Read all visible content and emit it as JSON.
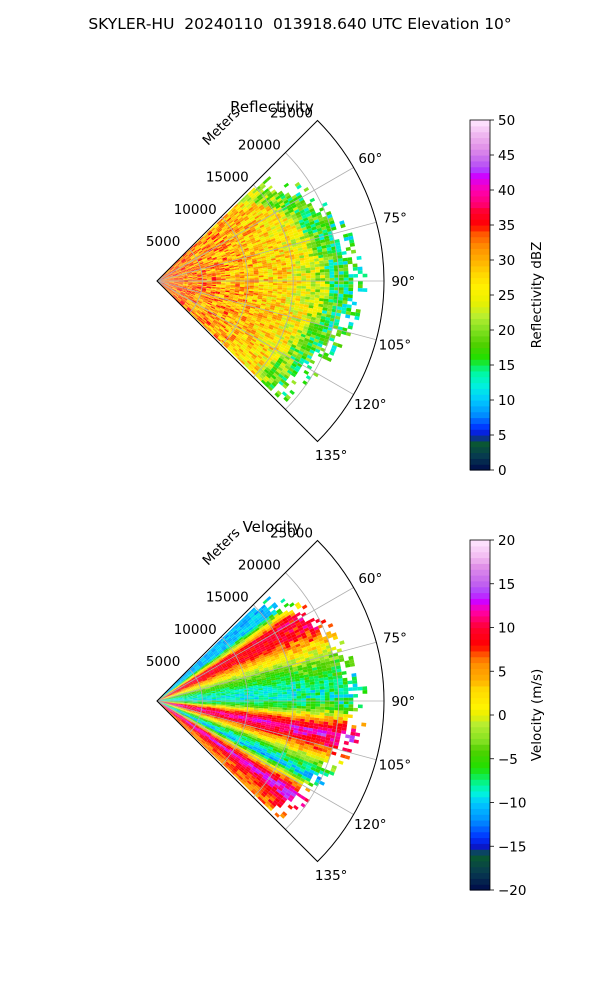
{
  "figure": {
    "title": "SKYLER-HU  20240110  013918.640 UTC Elevation 10°"
  },
  "chart_data": [
    {
      "type": "heatmap",
      "projection": "polar-sector",
      "title": "Reflectivity",
      "field": "reflectivity",
      "range_label": "Meters",
      "range_ticks": [
        "5000",
        "10000",
        "15000",
        "20000",
        "25000"
      ],
      "range_tick_values": [
        5000,
        10000,
        15000,
        20000,
        25000
      ],
      "rlim": [
        0,
        25000
      ],
      "azimuth_ticks": [
        "60°",
        "75°",
        "90°",
        "105°",
        "120°",
        "135°"
      ],
      "azimuth_tick_values": [
        60,
        75,
        90,
        105,
        120,
        135
      ],
      "azimuth_range": [
        45,
        135
      ],
      "data_azimuth_range": [
        46,
        134
      ],
      "grid": true,
      "colorbar": {
        "label": "Reflectivity dBZ",
        "min": 0,
        "max": 50,
        "ticks": [
          "0",
          "5",
          "10",
          "15",
          "20",
          "25",
          "30",
          "35",
          "40",
          "45",
          "50"
        ],
        "stops": [
          [
            0,
            "#000a4a"
          ],
          [
            2,
            "#073a50"
          ],
          [
            4,
            "#0a5a30"
          ],
          [
            5,
            "#0a18c8"
          ],
          [
            6,
            "#0030ff"
          ],
          [
            8,
            "#0090ff"
          ],
          [
            10,
            "#00c8ff"
          ],
          [
            12,
            "#00f0e0"
          ],
          [
            14,
            "#00f8a0"
          ],
          [
            16,
            "#20e000"
          ],
          [
            18,
            "#50d000"
          ],
          [
            20,
            "#80e020"
          ],
          [
            22,
            "#b8ee30"
          ],
          [
            24,
            "#e8f000"
          ],
          [
            26,
            "#fff200"
          ],
          [
            28,
            "#ffd800"
          ],
          [
            30,
            "#ffb000"
          ],
          [
            32,
            "#ff8c00"
          ],
          [
            34,
            "#ff5000"
          ],
          [
            35,
            "#ff0000"
          ],
          [
            37,
            "#ff0030"
          ],
          [
            38,
            "#ff0070"
          ],
          [
            40,
            "#ff00b0"
          ],
          [
            42,
            "#d000ff"
          ],
          [
            43,
            "#b040ff"
          ],
          [
            44,
            "#c060f0"
          ],
          [
            46,
            "#e090e8"
          ],
          [
            48,
            "#f0b8f0"
          ],
          [
            50,
            "#ffe8ff"
          ]
        ]
      },
      "echo": {
        "max_range_profile": [
          14600,
          16800,
          18500,
          19600,
          20500,
          21300,
          20700,
          19700,
          18700,
          17800,
          17100
        ],
        "typical_value_profile": [
          [
            0,
            33
          ],
          [
            9000,
            30
          ],
          [
            14000,
            27
          ],
          [
            18000,
            22
          ],
          [
            21000,
            20
          ]
        ]
      }
    },
    {
      "type": "heatmap",
      "projection": "polar-sector",
      "title": "Velocity",
      "field": "velocity",
      "range_label": "Meters",
      "range_ticks": [
        "5000",
        "10000",
        "15000",
        "20000",
        "25000"
      ],
      "range_tick_values": [
        5000,
        10000,
        15000,
        20000,
        25000
      ],
      "rlim": [
        0,
        25000
      ],
      "azimuth_ticks": [
        "60°",
        "75°",
        "90°",
        "105°",
        "120°",
        "135°"
      ],
      "azimuth_tick_values": [
        60,
        75,
        90,
        105,
        120,
        135
      ],
      "azimuth_range": [
        45,
        135
      ],
      "data_azimuth_range": [
        46,
        134
      ],
      "grid": true,
      "colorbar": {
        "label": "Velocity (m/s)",
        "min": -20,
        "max": 20,
        "ticks": [
          "−20",
          "−15",
          "−10",
          "−5",
          "0",
          "5",
          "10",
          "15",
          "20"
        ],
        "stops": [
          [
            -20,
            "#000a4a"
          ],
          [
            -18,
            "#073a50"
          ],
          [
            -16,
            "#0a5a30"
          ],
          [
            -15,
            "#0a18c8"
          ],
          [
            -14,
            "#0030ff"
          ],
          [
            -12,
            "#0090ff"
          ],
          [
            -10,
            "#00c8ff"
          ],
          [
            -9,
            "#00f0e0"
          ],
          [
            -8,
            "#00f8a0"
          ],
          [
            -6,
            "#20e000"
          ],
          [
            -4,
            "#50d000"
          ],
          [
            -3,
            "#80e020"
          ],
          [
            -1,
            "#b8ee30"
          ],
          [
            0,
            "#e8f000"
          ],
          [
            1,
            "#fff200"
          ],
          [
            3,
            "#ffd800"
          ],
          [
            4,
            "#ffb000"
          ],
          [
            6,
            "#ff8c00"
          ],
          [
            7,
            "#ff5000"
          ],
          [
            8,
            "#ff0000"
          ],
          [
            10,
            "#ff0030"
          ],
          [
            11,
            "#ff0070"
          ],
          [
            12,
            "#ff00b0"
          ],
          [
            13,
            "#d000ff"
          ],
          [
            14,
            "#b040ff"
          ],
          [
            15,
            "#c060f0"
          ],
          [
            17,
            "#e090e8"
          ],
          [
            18,
            "#f0b8f0"
          ],
          [
            20,
            "#ffe8ff"
          ]
        ]
      },
      "echo": {
        "max_range_profile": [
          14600,
          16800,
          18500,
          19600,
          20500,
          21300,
          20700,
          19700,
          18700,
          17800,
          17100
        ],
        "velocity_profile_by_azimuth": [
          [
            46,
            -11
          ],
          [
            52,
            -10
          ],
          [
            58,
            9
          ],
          [
            64,
            9
          ],
          [
            70,
            2
          ],
          [
            76,
            -4
          ],
          [
            82,
            -8
          ],
          [
            88,
            -9
          ],
          [
            92,
            -6
          ],
          [
            96,
            5
          ],
          [
            100,
            12
          ],
          [
            104,
            9
          ],
          [
            108,
            2
          ],
          [
            112,
            -7
          ],
          [
            116,
            -11
          ],
          [
            120,
            4
          ],
          [
            124,
            13
          ],
          [
            128,
            8
          ],
          [
            134,
            5
          ]
        ]
      }
    }
  ]
}
